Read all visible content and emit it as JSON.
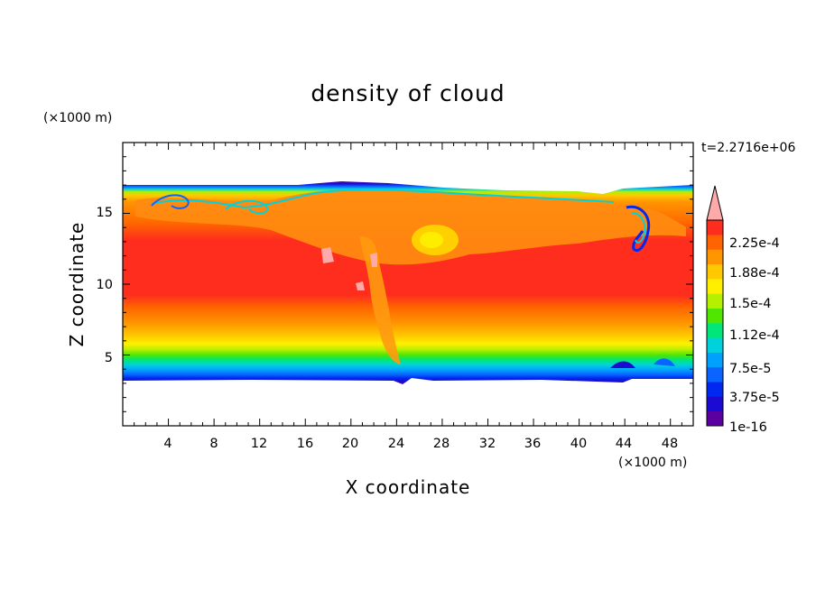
{
  "chart_data": {
    "type": "heatmap",
    "title": "density of cloud",
    "xlabel": "X coordinate",
    "ylabel": "Z coordinate",
    "x_unit": "(×1000 m)",
    "y_unit": "(×1000 m)",
    "time_label": "t=2.2716e+06",
    "xlim": [
      0,
      50
    ],
    "ylim": [
      0,
      20
    ],
    "x_ticks": [
      "4",
      "8",
      "12",
      "16",
      "20",
      "24",
      "28",
      "32",
      "36",
      "40",
      "44",
      "48"
    ],
    "y_ticks": [
      "5",
      "10",
      "15"
    ],
    "colorbar": {
      "levels": [
        1e-16,
        1.875e-05,
        3.75e-05,
        5.625e-05,
        7.5e-05,
        9.375e-05,
        0.0001125,
        0.00013125,
        0.00015,
        0.00016875,
        0.0001875,
        0.00020625,
        0.000225,
        0.00024375
      ],
      "labels": [
        "1e-16",
        "3.75e-5",
        "7.5e-5",
        "1.12e-4",
        "1.5e-4",
        "1.88e-4",
        "2.25e-4"
      ],
      "colors": [
        "#5a00a0",
        "#1a0ad2",
        "#0028f0",
        "#0a64ff",
        "#00a0ff",
        "#00d2dc",
        "#00e678",
        "#50e600",
        "#b4f000",
        "#fff000",
        "#ffc800",
        "#ff9600",
        "#ff6400",
        "#ff2d1e"
      ],
      "overflow_color": "#ffaaaa"
    },
    "field_description": {
      "cloud_base_km": 3.4,
      "cloud_top_km": 16.8,
      "max_region_km": [
        8,
        14
      ]
    }
  }
}
